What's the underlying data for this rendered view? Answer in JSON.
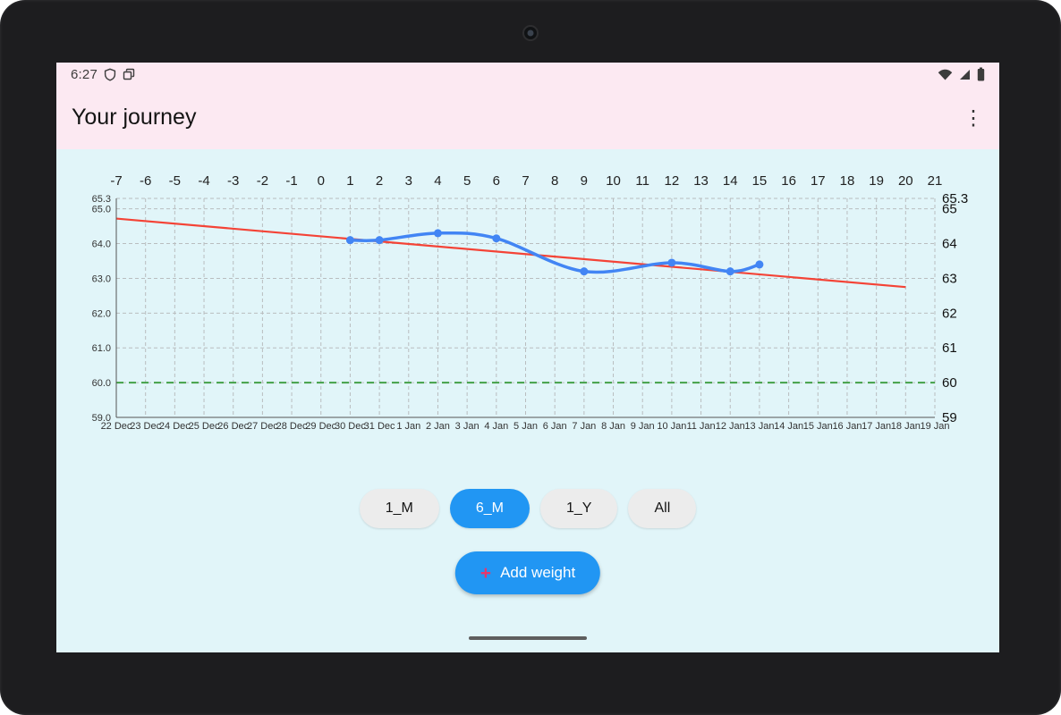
{
  "statusbar": {
    "time": "6:27"
  },
  "header": {
    "title": "Your journey",
    "menu_glyph": "⋮"
  },
  "chart_data": {
    "type": "line",
    "title": "",
    "xlabel": "",
    "ylabel": "",
    "grid": true,
    "ylim": [
      59.0,
      65.3
    ],
    "top_axis_labels": [
      "-7",
      "-6",
      "-5",
      "-4",
      "-3",
      "-2",
      "-1",
      "0",
      "1",
      "2",
      "3",
      "4",
      "5",
      "6",
      "7",
      "8",
      "9",
      "10",
      "11",
      "12",
      "13",
      "14",
      "15",
      "16",
      "17",
      "18",
      "19",
      "20",
      "21"
    ],
    "bottom_axis_labels": [
      "22 Dec",
      "23 Dec",
      "24 Dec",
      "25 Dec",
      "26 Dec",
      "27 Dec",
      "28 Dec",
      "29 Dec",
      "30 Dec",
      "31 Dec",
      "1 Jan",
      "2 Jan",
      "3 Jan",
      "4 Jan",
      "5 Jan",
      "6 Jan",
      "7 Jan",
      "8 Jan",
      "9 Jan",
      "10 Jan",
      "11 Jan",
      "12 Jan",
      "13 Jan",
      "14 Jan",
      "15 Jan",
      "16 Jan",
      "17 Jan",
      "18 Jan",
      "19 Jan"
    ],
    "left_axis": [
      {
        "label": "65.3",
        "value": 65.3
      },
      {
        "label": "65.0",
        "value": 65.0
      },
      {
        "label": "64.0",
        "value": 64.0
      },
      {
        "label": "63.0",
        "value": 63.0
      },
      {
        "label": "62.0",
        "value": 62.0
      },
      {
        "label": "61.0",
        "value": 61.0
      },
      {
        "label": "60.0",
        "value": 60.0
      },
      {
        "label": "59.0",
        "value": 59.0
      }
    ],
    "right_axis": [
      {
        "label": "65.3",
        "value": 65.3
      },
      {
        "label": "65",
        "value": 65.0
      },
      {
        "label": "64",
        "value": 64.0
      },
      {
        "label": "63",
        "value": 63.0
      },
      {
        "label": "62",
        "value": 62.0
      },
      {
        "label": "61",
        "value": 61.0
      },
      {
        "label": "60",
        "value": 60.0
      },
      {
        "label": "59",
        "value": 59.0
      }
    ],
    "y_gridlines": [
      65.3,
      65,
      64,
      63,
      62,
      61,
      60,
      59
    ],
    "weight_series": {
      "name": "weight",
      "color": "#4285F4",
      "points": [
        [
          8,
          64.1
        ],
        [
          9,
          64.1
        ],
        [
          11,
          64.3
        ],
        [
          13,
          64.15
        ],
        [
          16,
          63.2
        ],
        [
          19,
          63.45
        ],
        [
          21,
          63.2
        ],
        [
          22,
          63.4
        ]
      ]
    },
    "trend_line": {
      "name": "trend",
      "color": "#F44336",
      "start": [
        0,
        64.72
      ],
      "end": [
        27,
        62.75
      ]
    },
    "goal_line": {
      "name": "goal",
      "color": "#43A047",
      "y": 60.0
    },
    "legend": "none"
  },
  "range_buttons": [
    {
      "label": "1_M",
      "selected": false
    },
    {
      "label": "6_M",
      "selected": true
    },
    {
      "label": "1_Y",
      "selected": false
    },
    {
      "label": "All",
      "selected": false
    }
  ],
  "add_weight_button": {
    "plus": "+",
    "label": "Add weight"
  },
  "colors": {
    "accent": "#2196F3",
    "plus": "#E5386D",
    "header_bg": "#FCE9F2",
    "screen_bg": "#E1F5F9",
    "pill_bg": "#ECECEC",
    "chart_blue": "#4285F4",
    "trend_red": "#F44336",
    "goal_green": "#43A047"
  }
}
